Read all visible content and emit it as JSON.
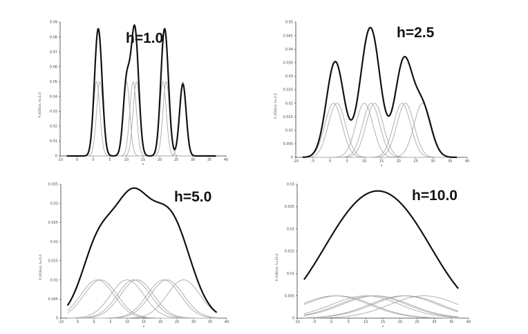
{
  "chart_data": [
    {
      "type": "line",
      "title": "h=1.0",
      "xlabel": "x",
      "ylabel": "P_KDE(x), h=1.0",
      "xlim": [
        -10,
        40
      ],
      "ylim": [
        0,
        0.09
      ],
      "xticks": [
        "-10",
        "-5",
        "0",
        "5",
        "10",
        "15",
        "20",
        "25",
        "30",
        "35",
        "40"
      ],
      "yticks": [
        "0",
        "0.01",
        "0.02",
        "0.03",
        "0.04",
        "0.05",
        "0.06",
        "0.07",
        "0.08",
        "0.09"
      ],
      "h": 1.0,
      "kernel_centers": [
        1,
        2,
        10,
        12,
        13,
        21,
        22,
        27
      ],
      "kernel_peak": 0.05,
      "sum_peak": 0.088
    },
    {
      "type": "line",
      "title": "h=2.5",
      "xlabel": "x",
      "ylabel": "P_KDE(x), h=2.5",
      "xlim": [
        -10,
        40
      ],
      "ylim": [
        0,
        0.05
      ],
      "xticks": [
        "-10",
        "-5",
        "0",
        "5",
        "10",
        "15",
        "20",
        "25",
        "30",
        "35",
        "40"
      ],
      "yticks": [
        "0",
        "0.005",
        "0.01",
        "0.015",
        "0.02",
        "0.025",
        "0.03",
        "0.035",
        "0.04",
        "0.045",
        "0.05"
      ],
      "h": 2.5,
      "kernel_centers": [
        1,
        2,
        10,
        12,
        13,
        21,
        22,
        27
      ],
      "kernel_peak": 0.02,
      "sum_peak": 0.048
    },
    {
      "type": "line",
      "title": "h=5.0",
      "xlabel": "x",
      "ylabel": "P_KDE(x), h=5.0",
      "xlim": [
        -10,
        40
      ],
      "ylim": [
        0,
        0.035
      ],
      "xticks": [
        "-10",
        "-5",
        "0",
        "5",
        "10",
        "15",
        "20",
        "25",
        "30",
        "35",
        "40"
      ],
      "yticks": [
        "0",
        "0.005",
        "0.01",
        "0.015",
        "0.02",
        "0.025",
        "0.03",
        "0.035"
      ],
      "h": 5.0,
      "kernel_centers": [
        1,
        2,
        10,
        12,
        13,
        21,
        22,
        27
      ],
      "kernel_peak": 0.01,
      "sum_peak": 0.034
    },
    {
      "type": "line",
      "title": "h=10.0",
      "xlabel": "x",
      "ylabel": "P_KDE(x), h=10.0",
      "xlim": [
        -10,
        40
      ],
      "ylim": [
        0,
        0.03
      ],
      "xticks": [
        "-10",
        "-5",
        "0",
        "5",
        "10",
        "15",
        "20",
        "25",
        "30",
        "35",
        "40"
      ],
      "yticks": [
        "0",
        "0.005",
        "0.01",
        "0.015",
        "0.02",
        "0.025",
        "0.03"
      ],
      "h": 10.0,
      "kernel_centers": [
        1,
        2,
        10,
        12,
        13,
        21,
        22,
        27
      ],
      "kernel_peak": 0.005,
      "sum_peak": 0.0285
    }
  ],
  "colors": {
    "sum_line": "#111111",
    "kernel_line": "#a8a8a8",
    "axis": "#333333"
  }
}
